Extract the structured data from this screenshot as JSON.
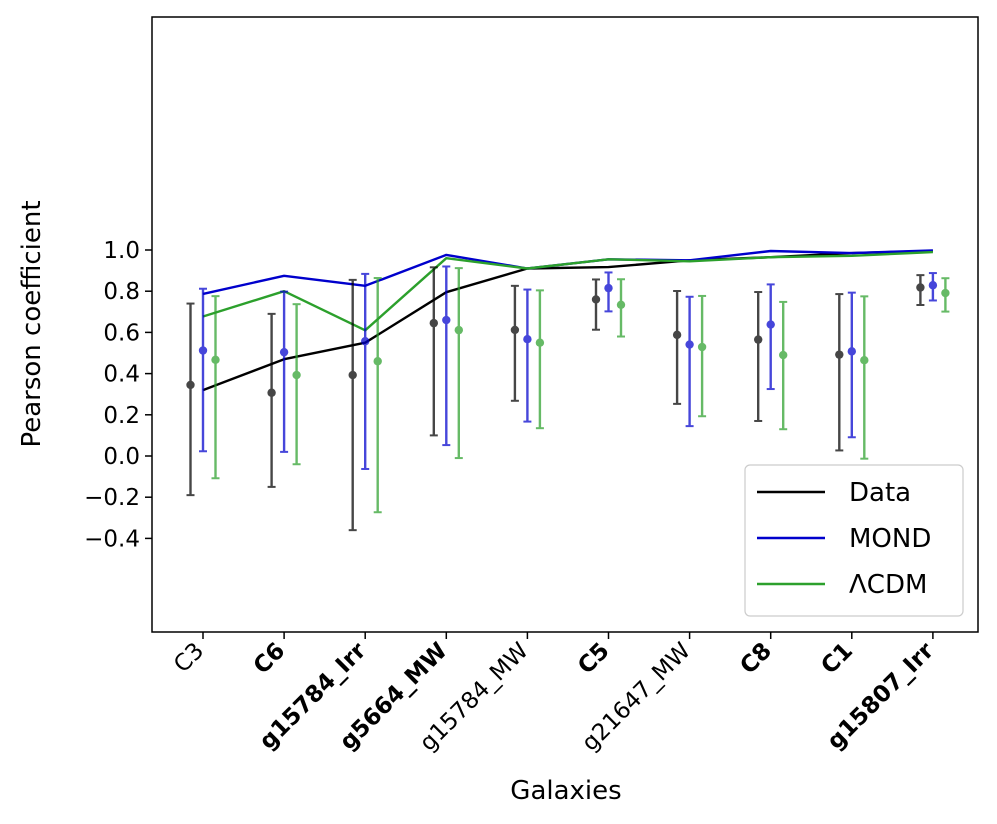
{
  "chart_data": {
    "type": "line",
    "title": "",
    "xlabel": "Galaxies",
    "ylabel": "Pearson coefficient",
    "ylim": [
      -0.43,
      1.06
    ],
    "yticks": [
      -0.4,
      -0.2,
      0.0,
      0.2,
      0.4,
      0.6,
      0.8,
      1.0
    ],
    "ytick_labels": [
      "−0.4",
      "−0.2",
      "0.0",
      "0.2",
      "0.4",
      "0.6",
      "0.8",
      "1.0"
    ],
    "grid": false,
    "legend_position": "lower-right",
    "categories": [
      {
        "label": "C3",
        "color": "#d62728",
        "bold": false
      },
      {
        "label": "C6",
        "color": "#d62728",
        "bold": true
      },
      {
        "label": "g15784_Irr",
        "color": "#000000",
        "bold": true
      },
      {
        "label": "g5664_MW",
        "color": "#000000",
        "bold": true
      },
      {
        "label": "g15784_MW",
        "color": "#000000",
        "bold": false
      },
      {
        "label": "C5",
        "color": "#d62728",
        "bold": true
      },
      {
        "label": "g21647_MW",
        "color": "#000000",
        "bold": false
      },
      {
        "label": "C8",
        "color": "#d62728",
        "bold": true
      },
      {
        "label": "C1",
        "color": "#d62728",
        "bold": true
      },
      {
        "label": "g15807_Irr",
        "color": "#000000",
        "bold": true
      }
    ],
    "series": [
      {
        "name": "Data",
        "color": "#000000",
        "line": [
          0.32,
          0.47,
          0.55,
          0.795,
          0.91,
          0.917,
          0.95,
          0.965,
          0.985,
          0.995
        ],
        "points": [
          0.345,
          0.307,
          0.393,
          0.645,
          0.612,
          0.76,
          0.588,
          0.565,
          0.492,
          0.818
        ],
        "err_low": [
          -0.19,
          -0.15,
          -0.36,
          0.1,
          0.268,
          0.613,
          0.253,
          0.17,
          0.027,
          0.733
        ],
        "err_high": [
          0.74,
          0.69,
          0.855,
          0.916,
          0.826,
          0.857,
          0.801,
          0.796,
          0.786,
          0.878
        ]
      },
      {
        "name": "MOND",
        "color": "#0000cc",
        "line": [
          0.787,
          0.875,
          0.826,
          0.976,
          0.91,
          0.955,
          0.95,
          0.995,
          0.985,
          0.998
        ],
        "points": [
          0.512,
          0.504,
          0.557,
          0.66,
          0.567,
          0.815,
          0.541,
          0.638,
          0.508,
          0.829
        ],
        "err_low": [
          0.023,
          0.02,
          -0.063,
          0.053,
          0.167,
          0.702,
          0.145,
          0.325,
          0.091,
          0.755
        ],
        "err_high": [
          0.812,
          0.798,
          0.884,
          0.92,
          0.808,
          0.891,
          0.773,
          0.833,
          0.793,
          0.888
        ]
      },
      {
        "name": "ΛCDM",
        "color": "#2ca02c",
        "line": [
          0.677,
          0.8,
          0.61,
          0.96,
          0.91,
          0.955,
          0.945,
          0.965,
          0.972,
          0.99
        ],
        "points": [
          0.467,
          0.393,
          0.46,
          0.611,
          0.55,
          0.734,
          0.529,
          0.49,
          0.465,
          0.791
        ],
        "err_low": [
          -0.108,
          -0.04,
          -0.273,
          -0.01,
          0.135,
          0.58,
          0.193,
          0.13,
          -0.013,
          0.701
        ],
        "err_high": [
          0.776,
          0.737,
          0.864,
          0.912,
          0.804,
          0.858,
          0.777,
          0.748,
          0.775,
          0.863
        ]
      }
    ]
  }
}
